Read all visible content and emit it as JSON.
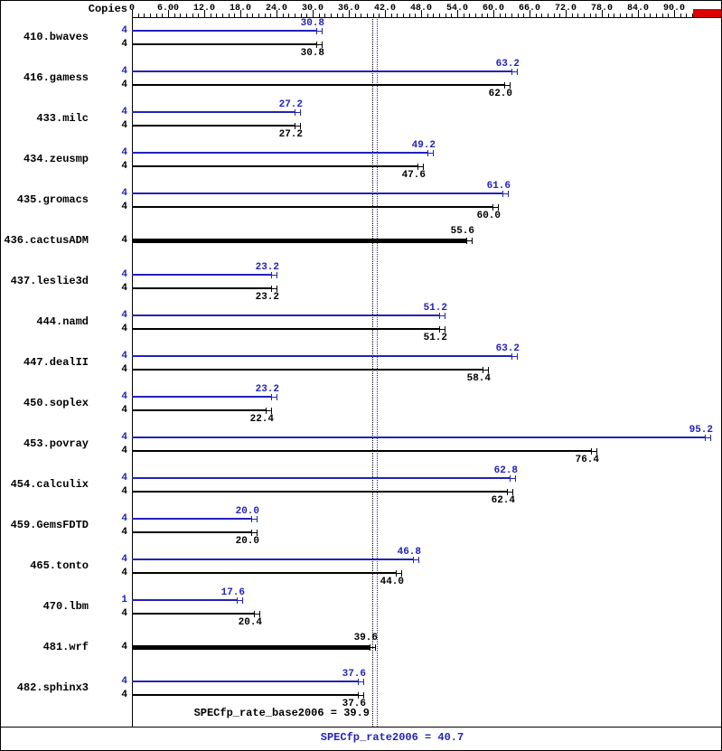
{
  "header": {
    "copies_label": "Copies"
  },
  "colors": {
    "peak": "#2222bb",
    "base": "#000000",
    "overflow_box": "#dd0000",
    "axis": "#000000"
  },
  "summary": {
    "base_text": "SPECfp_rate_base2006 = 39.9",
    "peak_text": "SPECfp_rate2006 = 40.7",
    "base_value": 39.9,
    "peak_value": 40.7
  },
  "chart_data": {
    "type": "bar",
    "orientation": "horizontal",
    "title": "",
    "xlabel": "",
    "ylabel": "",
    "xlim": [
      0,
      97
    ],
    "grid": false,
    "legend_position": "none",
    "x_axis": {
      "tick_interval": 6,
      "minor_tick_interval": 1,
      "tick_labels": [
        "0",
        "6.00",
        "12.0",
        "18.0",
        "24.0",
        "30.0",
        "36.0",
        "42.0",
        "48.0",
        "54.0",
        "60.0",
        "66.0",
        "72.0",
        "78.0",
        "84.0",
        "90.0"
      ]
    },
    "series_names": [
      "SPECfp_rate2006 (peak, blue)",
      "SPECfp_rate_base2006 (base, black)"
    ],
    "rows": [
      {
        "name": "410.bwaves",
        "single": false,
        "peak_copies": "4",
        "base_copies": "4",
        "peak": 30.8,
        "base": 30.8,
        "peak_label": "30.8",
        "base_label": "30.8"
      },
      {
        "name": "416.gamess",
        "single": false,
        "peak_copies": "4",
        "base_copies": "4",
        "peak": 63.2,
        "base": 62.0,
        "peak_label": "63.2",
        "base_label": "62.0"
      },
      {
        "name": "433.milc",
        "single": false,
        "peak_copies": "4",
        "base_copies": "4",
        "peak": 27.2,
        "base": 27.2,
        "peak_label": "27.2",
        "base_label": "27.2"
      },
      {
        "name": "434.zeusmp",
        "single": false,
        "peak_copies": "4",
        "base_copies": "4",
        "peak": 49.2,
        "base": 47.6,
        "peak_label": "49.2",
        "base_label": "47.6"
      },
      {
        "name": "435.gromacs",
        "single": false,
        "peak_copies": "4",
        "base_copies": "4",
        "peak": 61.6,
        "base": 60.0,
        "peak_label": "61.6",
        "base_label": "60.0"
      },
      {
        "name": "436.cactusADM",
        "single": true,
        "base_copies": "4",
        "base": 55.6,
        "base_label": "55.6"
      },
      {
        "name": "437.leslie3d",
        "single": false,
        "peak_copies": "4",
        "base_copies": "4",
        "peak": 23.2,
        "base": 23.2,
        "peak_label": "23.2",
        "base_label": "23.2"
      },
      {
        "name": "444.namd",
        "single": false,
        "peak_copies": "4",
        "base_copies": "4",
        "peak": 51.2,
        "base": 51.2,
        "peak_label": "51.2",
        "base_label": "51.2"
      },
      {
        "name": "447.dealII",
        "single": false,
        "peak_copies": "4",
        "base_copies": "4",
        "peak": 63.2,
        "base": 58.4,
        "peak_label": "63.2",
        "base_label": "58.4"
      },
      {
        "name": "450.soplex",
        "single": false,
        "peak_copies": "4",
        "base_copies": "4",
        "peak": 23.2,
        "base": 22.4,
        "peak_label": "23.2",
        "base_label": "22.4"
      },
      {
        "name": "453.povray",
        "single": false,
        "peak_copies": "4",
        "base_copies": "4",
        "peak": 95.2,
        "base": 76.4,
        "peak_label": "95.2",
        "base_label": "76.4"
      },
      {
        "name": "454.calculix",
        "single": false,
        "peak_copies": "4",
        "base_copies": "4",
        "peak": 62.8,
        "base": 62.4,
        "peak_label": "62.8",
        "base_label": "62.4"
      },
      {
        "name": "459.GemsFDTD",
        "single": false,
        "peak_copies": "4",
        "base_copies": "4",
        "peak": 20.0,
        "base": 20.0,
        "peak_label": "20.0",
        "base_label": "20.0"
      },
      {
        "name": "465.tonto",
        "single": false,
        "peak_copies": "4",
        "base_copies": "4",
        "peak": 46.8,
        "base": 44.0,
        "peak_label": "46.8",
        "base_label": "44.0"
      },
      {
        "name": "470.lbm",
        "single": false,
        "peak_copies": "1",
        "base_copies": "4",
        "peak": 17.6,
        "base": 20.4,
        "peak_label": "17.6",
        "base_label": "20.4"
      },
      {
        "name": "481.wrf",
        "single": true,
        "base_copies": "4",
        "base": 39.6,
        "base_label": "39.6"
      },
      {
        "name": "482.sphinx3",
        "single": false,
        "peak_copies": "4",
        "base_copies": "4",
        "peak": 37.6,
        "base": 37.6,
        "peak_label": "37.6",
        "base_label": "37.6"
      }
    ],
    "reference_lines": [
      {
        "name": "base-mean",
        "value": 39.9,
        "style": "dotted",
        "color": "#000000",
        "label": "SPECfp_rate_base2006 = 39.9"
      },
      {
        "name": "peak-mean",
        "value": 40.7,
        "style": "dotted",
        "color": "#2222bb",
        "label": "SPECfp_rate2006 = 40.7"
      }
    ]
  }
}
